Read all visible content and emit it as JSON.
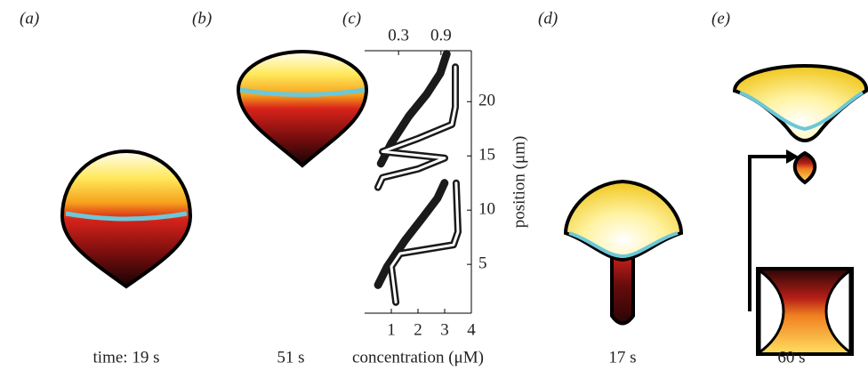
{
  "panels": {
    "labels": [
      "(a)",
      "(b)",
      "(c)",
      "(d)",
      "(e)"
    ],
    "captions": [
      "time: 19 s",
      "51 s",
      "17 s",
      "60 s"
    ]
  },
  "chart_data": {
    "type": "line",
    "xlabel": "concentration (μM)",
    "ylabel": "position (μm)",
    "xlim": [
      0,
      4
    ],
    "xticks": [
      1,
      2,
      3,
      4
    ],
    "x2lim": [
      -0.18,
      1.33
    ],
    "x2ticks": [
      0.3,
      0.9
    ],
    "ylim": [
      0.5,
      24.7
    ],
    "yticks": [
      5,
      10,
      15,
      20
    ],
    "series": [
      {
        "color": "#1a1a1a",
        "axis": "x2",
        "x": [
          0.05,
          0.2,
          0.45,
          0.7,
          0.89,
          0.98,
          null,
          0.01,
          0.14,
          0.39,
          0.64,
          0.85,
          0.95
        ],
        "values": [
          14.3,
          16.2,
          18.7,
          20.7,
          22.6,
          24.4,
          null,
          3.1,
          4.8,
          7.2,
          9.3,
          11.1,
          12.5
        ]
      },
      {
        "color": "#1a1a1a",
        "x": [
          3.4,
          3.4,
          3.27,
          2.0,
          0.67,
          3.0,
          2.0,
          0.67,
          0.5,
          null,
          3.43,
          3.5,
          3.33,
          1.33,
          1.0,
          1.17
        ],
        "values": [
          23.2,
          19.5,
          17.9,
          16.6,
          15.4,
          14.8,
          13.8,
          13.0,
          12.1,
          null,
          12.5,
          8.0,
          6.8,
          6.0,
          4.8,
          1.5
        ]
      }
    ]
  }
}
